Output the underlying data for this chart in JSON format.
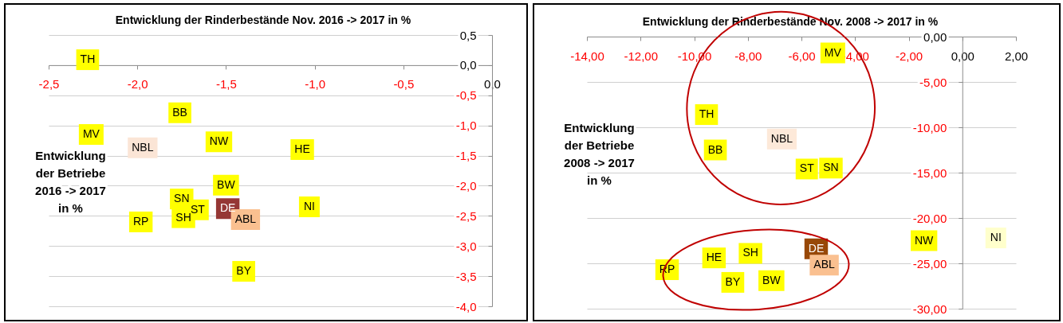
{
  "chart_data": [
    {
      "type": "scatter",
      "title": "Entwicklung der Rinderbestände Nov. 2016 -> 2017 in %",
      "ylabel": "Entwicklung\nder Betriebe\n2016 -> 2017\nin %",
      "xlim": [
        -2.5,
        0
      ],
      "xticks": [
        {
          "value": -2.5,
          "label": "-2,5"
        },
        {
          "value": -2,
          "label": "-2,0"
        },
        {
          "value": -1.5,
          "label": "-1,5"
        },
        {
          "value": -1,
          "label": "-1,0"
        },
        {
          "value": -0.5,
          "label": "-0,5"
        },
        {
          "value": 0,
          "label": "0,0"
        }
      ],
      "ylim": [
        -4,
        0.5
      ],
      "yticks": [
        {
          "value": 0.5,
          "label": "0,5"
        },
        {
          "value": 0,
          "label": "0,0"
        },
        {
          "value": -0.5,
          "label": "-0,5"
        },
        {
          "value": -1,
          "label": "-1,0"
        },
        {
          "value": -1.5,
          "label": "-1,5"
        },
        {
          "value": -2,
          "label": "-2,0"
        },
        {
          "value": -2.5,
          "label": "-2,5"
        },
        {
          "value": -3,
          "label": "-3,0"
        },
        {
          "value": -3.5,
          "label": "-3,5"
        },
        {
          "value": -4,
          "label": "-4,0"
        }
      ],
      "grid": "y",
      "marker": "square",
      "series": [
        {
          "name": "TH",
          "color": "#ffff00",
          "x": [
            -2.28
          ],
          "values": [
            0.09
          ]
        },
        {
          "name": "BB",
          "color": "#ffff00",
          "x": [
            -1.76
          ],
          "values": [
            -0.79
          ]
        },
        {
          "name": "MV",
          "color": "#ffff00",
          "x": [
            -2.26
          ],
          "values": [
            -1.15
          ]
        },
        {
          "name": "NBL",
          "color": "#fbe5d6",
          "x": [
            -1.97
          ],
          "values": [
            -1.37
          ]
        },
        {
          "name": "NW",
          "color": "#ffff00",
          "x": [
            -1.54
          ],
          "values": [
            -1.27
          ]
        },
        {
          "name": "HE",
          "color": "#ffff00",
          "x": [
            -1.07
          ],
          "values": [
            -1.4
          ]
        },
        {
          "name": "BW",
          "color": "#ffff00",
          "x": [
            -1.5
          ],
          "values": [
            -1.99
          ]
        },
        {
          "name": "SN",
          "color": "#ffff00",
          "x": [
            -1.75
          ],
          "values": [
            -2.22
          ]
        },
        {
          "name": "SH",
          "color": "#ffff00",
          "x": [
            -1.74
          ],
          "values": [
            -2.53
          ]
        },
        {
          "name": "ST",
          "color": "#ffff00",
          "x": [
            -1.66
          ],
          "values": [
            -2.4
          ]
        },
        {
          "name": "DE",
          "color": "#953735",
          "x": [
            -1.49
          ],
          "values": [
            -2.38
          ]
        },
        {
          "name": "ABL",
          "color": "#fac090",
          "x": [
            -1.39
          ],
          "values": [
            -2.56
          ]
        },
        {
          "name": "RP",
          "color": "#ffff00",
          "x": [
            -1.98
          ],
          "values": [
            -2.6
          ]
        },
        {
          "name": "NI",
          "color": "#ffff00",
          "x": [
            -1.03
          ],
          "values": [
            -2.35
          ]
        },
        {
          "name": "BY",
          "color": "#ffff00",
          "x": [
            -1.4
          ],
          "values": [
            -3.42
          ]
        }
      ]
    },
    {
      "type": "scatter",
      "title": "Entwicklung der Rinderbestände Nov. 2008 -> 2017 in %",
      "ylabel": "Entwicklung\nder Betriebe\n2008 -> 2017\nin %",
      "xlim": [
        -14,
        2
      ],
      "xticks": [
        {
          "value": -14,
          "label": "-14,00"
        },
        {
          "value": -12,
          "label": "-12,00"
        },
        {
          "value": -10,
          "label": "-10,00"
        },
        {
          "value": -8,
          "label": "-8,00"
        },
        {
          "value": -6,
          "label": "-6,00"
        },
        {
          "value": -4,
          "label": "-4,00"
        },
        {
          "value": -2,
          "label": "-2,00"
        },
        {
          "value": 0,
          "label": "0,00"
        },
        {
          "value": 2,
          "label": "2,00"
        }
      ],
      "ylim": [
        -30,
        0
      ],
      "yticks": [
        {
          "value": 0,
          "label": "0,00"
        },
        {
          "value": -5,
          "label": "-5,00"
        },
        {
          "value": -10,
          "label": "-10,00"
        },
        {
          "value": -15,
          "label": "-15,00"
        },
        {
          "value": -20,
          "label": "-20,00"
        },
        {
          "value": -25,
          "label": "-25,00"
        },
        {
          "value": -30,
          "label": "-30,00"
        }
      ],
      "grid": "y",
      "marker": "square",
      "series": [
        {
          "name": "MV",
          "color": "#ffff00",
          "x": [
            -4.83
          ],
          "values": [
            -1.8
          ]
        },
        {
          "name": "TH",
          "color": "#ffff00",
          "x": [
            -9.54
          ],
          "values": [
            -8.6
          ]
        },
        {
          "name": "BB",
          "color": "#ffff00",
          "x": [
            -9.21
          ],
          "values": [
            -12.5
          ]
        },
        {
          "name": "NBL",
          "color": "#fde9d9",
          "x": [
            -6.73
          ],
          "values": [
            -11.3
          ]
        },
        {
          "name": "ST",
          "color": "#ffff00",
          "x": [
            -5.8
          ],
          "values": [
            -14.6
          ]
        },
        {
          "name": "SN",
          "color": "#ffff00",
          "x": [
            -4.9
          ],
          "values": [
            -14.5
          ]
        },
        {
          "name": "NW",
          "color": "#ffff00",
          "x": [
            -1.43
          ],
          "values": [
            -22.5
          ]
        },
        {
          "name": "NI",
          "color": "#ffffcc",
          "x": [
            1.25
          ],
          "values": [
            -22.2
          ]
        },
        {
          "name": "HE",
          "color": "#ffff00",
          "x": [
            -9.26
          ],
          "values": [
            -24.4
          ]
        },
        {
          "name": "SH",
          "color": "#ffff00",
          "x": [
            -7.9
          ],
          "values": [
            -23.9
          ]
        },
        {
          "name": "RP",
          "color": "#ffff00",
          "x": [
            -11.01
          ],
          "values": [
            -25.7
          ]
        },
        {
          "name": "BY",
          "color": "#ffff00",
          "x": [
            -8.56
          ],
          "values": [
            -27.1
          ]
        },
        {
          "name": "BW",
          "color": "#ffff00",
          "x": [
            -7.12
          ],
          "values": [
            -26.9
          ]
        },
        {
          "name": "DE",
          "color": "#984807",
          "x": [
            -5.45
          ],
          "values": [
            -23.4
          ]
        },
        {
          "name": "ABL",
          "color": "#fac090",
          "x": [
            -5.15
          ],
          "values": [
            -25.2
          ]
        }
      ]
    }
  ]
}
